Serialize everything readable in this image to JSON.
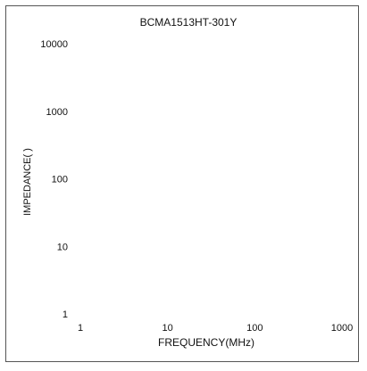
{
  "chart_data": {
    "type": "line",
    "title": "BCMA1513HT-301Y",
    "xlabel": "FREQUENCY(MHz)",
    "ylabel": "IMPEDANCE(  )",
    "x_scale": "log",
    "y_scale": "log",
    "xlim": [
      1,
      1000
    ],
    "ylim": [
      1,
      10000
    ],
    "x_ticks": [
      "1",
      "10",
      "100",
      "1000"
    ],
    "y_ticks": [
      "10000",
      "1000",
      "100",
      "10",
      "1"
    ],
    "grid": false,
    "series": []
  }
}
